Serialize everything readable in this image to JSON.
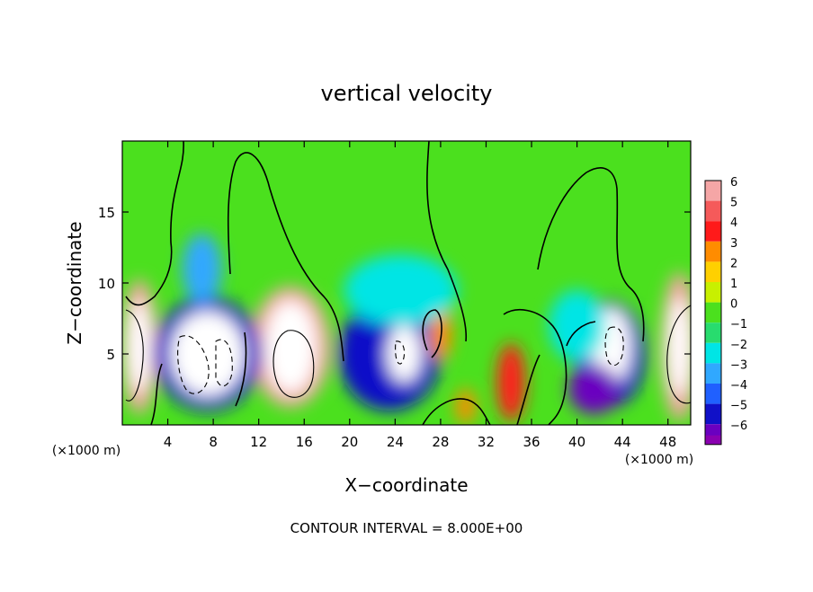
{
  "chart_data": {
    "type": "heatmap",
    "title": "vertical velocity",
    "xlabel": "X−coordinate",
    "ylabel": "Z−coordinate",
    "x_unit_label_left": "(×1000 m)",
    "x_unit_label_right": "(×1000 m)",
    "footer": "CONTOUR INTERVAL = 8.000E+00",
    "xlim": [
      0,
      50
    ],
    "ylim": [
      0,
      20
    ],
    "x_ticks": [
      {
        "value": 4,
        "label": "4"
      },
      {
        "value": 8,
        "label": "8"
      },
      {
        "value": 12,
        "label": "12"
      },
      {
        "value": 16,
        "label": "16"
      },
      {
        "value": 20,
        "label": "20"
      },
      {
        "value": 24,
        "label": "24"
      },
      {
        "value": 28,
        "label": "28"
      },
      {
        "value": 32,
        "label": "32"
      },
      {
        "value": 36,
        "label": "36"
      },
      {
        "value": 40,
        "label": "40"
      },
      {
        "value": 44,
        "label": "44"
      },
      {
        "value": 48,
        "label": "48"
      }
    ],
    "y_ticks": [
      {
        "value": 5,
        "label": "5"
      },
      {
        "value": 10,
        "label": "10"
      },
      {
        "value": 15,
        "label": "15"
      }
    ],
    "colorbar": {
      "levels": [
        {
          "label": "6",
          "color": "#f5a6a6"
        },
        {
          "label": "5",
          "color": "#f55a5a"
        },
        {
          "label": "4",
          "color": "#ff1a1a"
        },
        {
          "label": "3",
          "color": "#ff8c00"
        },
        {
          "label": "2",
          "color": "#ffd000"
        },
        {
          "label": "1",
          "color": "#c8f000"
        },
        {
          "label": "0",
          "color": "#4be01e"
        },
        {
          "label": "−1",
          "color": "#28dc6e"
        },
        {
          "label": "−2",
          "color": "#00e5e5"
        },
        {
          "label": "−3",
          "color": "#30a8ff"
        },
        {
          "label": "−4",
          "color": "#2060ff"
        },
        {
          "label": "−5",
          "color": "#1010c8"
        },
        {
          "label": "−6",
          "color": "#6a00c0"
        }
      ],
      "bottom_color": "#8a00b0"
    },
    "cells": [
      {
        "x": 1.5,
        "z": 5.5,
        "w": 3.2,
        "h": 9.5,
        "v": 6
      },
      {
        "x": 1.5,
        "z": 5.5,
        "w": 2.0,
        "h": 6.5,
        "v": 7
      },
      {
        "x": 49.0,
        "z": 5.5,
        "w": 3.2,
        "h": 10.5,
        "v": 6
      },
      {
        "x": 49.0,
        "z": 5.5,
        "w": 2.0,
        "h": 7.0,
        "v": 7
      },
      {
        "x": 14.8,
        "z": 5.5,
        "w": 7.0,
        "h": 8.5,
        "v": 6
      },
      {
        "x": 14.8,
        "z": 5.5,
        "w": 4.5,
        "h": 6.5,
        "v": 7
      },
      {
        "x": 7.5,
        "z": 5.0,
        "w": 9.5,
        "h": 8.0,
        "v": -5
      },
      {
        "x": 7.5,
        "z": 5.0,
        "w": 6.5,
        "h": 6.0,
        "v": 7
      },
      {
        "x": 23.5,
        "z": 5.0,
        "w": 9.0,
        "h": 8.0,
        "v": -5
      },
      {
        "x": 24.8,
        "z": 5.0,
        "w": 3.0,
        "h": 4.0,
        "v": 7
      },
      {
        "x": 42.8,
        "z": 5.0,
        "w": 6.5,
        "h": 7.5,
        "v": -5
      },
      {
        "x": 43.0,
        "z": 5.5,
        "w": 3.5,
        "h": 5.5,
        "v": 7
      },
      {
        "x": 28.0,
        "z": 6.5,
        "w": 2.0,
        "h": 4.0,
        "v": 3
      },
      {
        "x": 34.2,
        "z": 3.0,
        "w": 2.5,
        "h": 5.5,
        "v": 4
      },
      {
        "x": 30.2,
        "z": 1.3,
        "w": 1.8,
        "h": 2.5,
        "v": 3
      },
      {
        "x": 24.5,
        "z": 9.5,
        "w": 10.0,
        "h": 5.0,
        "v": -2
      },
      {
        "x": 7.0,
        "z": 11.0,
        "w": 3.5,
        "h": 5.0,
        "v": -3
      },
      {
        "x": 41.5,
        "z": 2.5,
        "w": 4.5,
        "h": 3.5,
        "v": -6
      },
      {
        "x": 40.0,
        "z": 7.0,
        "w": 5.0,
        "h": 5.0,
        "v": -2
      }
    ]
  }
}
